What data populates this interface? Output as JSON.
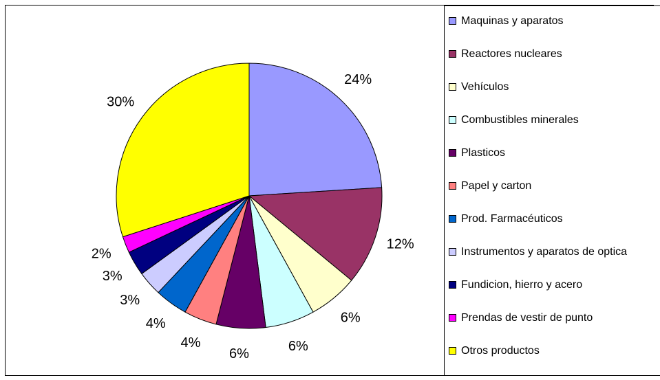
{
  "chart_data": {
    "type": "pie",
    "categories": [
      "Maquinas y aparatos",
      "Reactores nucleares",
      "Vehículos",
      "Combustibles minerales",
      "Plasticos",
      "Papel y carton",
      "Prod. Farmacéuticos",
      "Instrumentos y aparatos de optica",
      "Fundicion, hierro y acero",
      "Prendas de vestir de punto",
      "Otros productos"
    ],
    "values": [
      24,
      12,
      6,
      6,
      6,
      4,
      4,
      3,
      3,
      2,
      30
    ],
    "value_labels": [
      "24%",
      "12%",
      "6%",
      "6%",
      "6%",
      "4%",
      "4%",
      "3%",
      "3%",
      "2%",
      "30%"
    ],
    "colors": [
      "#9999FF",
      "#993366",
      "#FFFFCC",
      "#CCFFFF",
      "#660066",
      "#FF8080",
      "#0066CC",
      "#CCCCFF",
      "#000080",
      "#FF00FF",
      "#FFFF00"
    ],
    "legend": "right"
  }
}
